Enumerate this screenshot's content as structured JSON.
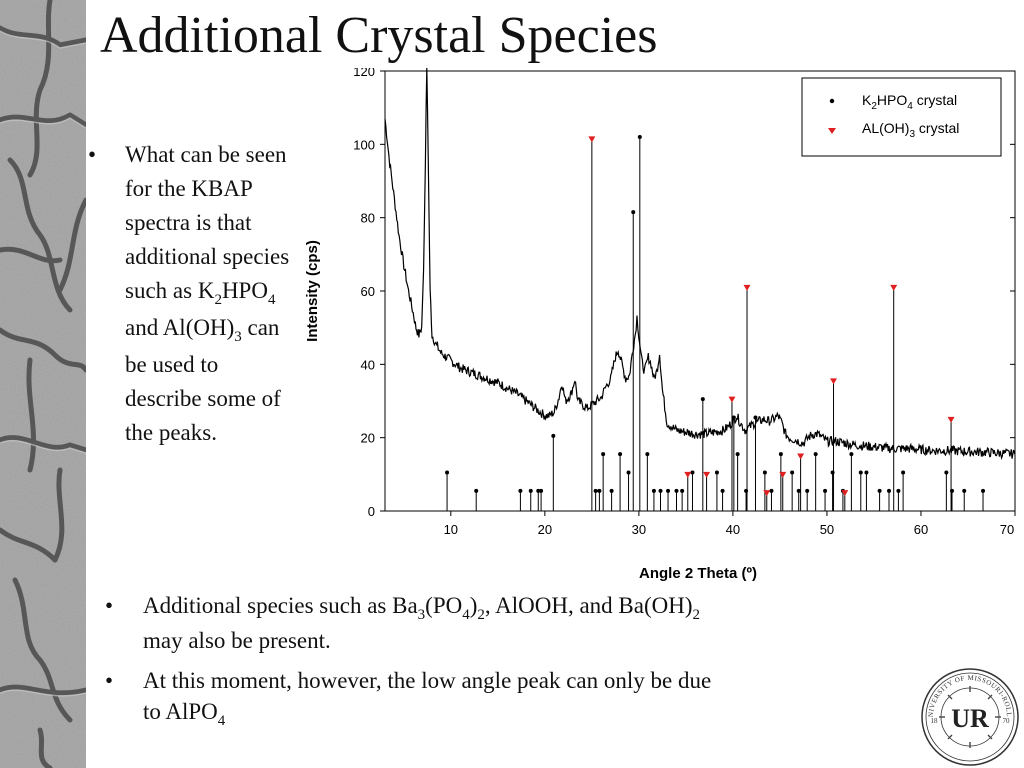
{
  "slide": {
    "title": "Additional Crystal Species",
    "bullet_marker": "•",
    "left_bullet": {
      "part1": "What can be seen for the KBAP spectra is that additional species such as K",
      "sub1": "2",
      "part2": "HPO",
      "sub2": "4",
      "part3": " and Al(OH)",
      "sub3": "3",
      "part4": " can be used to describe some of the peaks."
    },
    "bottom_bullets": [
      {
        "part1": "Additional species such as Ba",
        "sub1": "3",
        "part2": "(PO",
        "sub2": "4",
        "part3": ")",
        "sub3": "2",
        "part4": ", AlOOH, and Ba(OH)",
        "sub4": "2",
        "part5": " may also be present."
      },
      {
        "part1": "At this moment, however, the low angle peak can only be due to AlPO",
        "sub1": "4"
      }
    ],
    "logo_text": {
      "top": "UNIVERSITY OF MISSOURI-ROLLA",
      "monogram": "UR",
      "year_left": "18",
      "year_right": "70"
    }
  },
  "chart_data": {
    "type": "line",
    "xlabel": "Angle 2 Theta (º)",
    "ylabel": "Intensity (cps)",
    "xlim": [
      3,
      70
    ],
    "ylim": [
      0,
      120
    ],
    "x_ticks": [
      10,
      20,
      30,
      40,
      50,
      60,
      70
    ],
    "y_ticks": [
      0,
      20,
      40,
      60,
      80,
      100,
      120
    ],
    "x_tick_labels": [
      "10",
      "20",
      "30",
      "40",
      "50",
      "60",
      "70"
    ],
    "y_tick_labels": [
      "0",
      "20",
      "40",
      "60",
      "80",
      "100",
      "120"
    ],
    "grid": false,
    "legend_position": "top-right",
    "legend": [
      {
        "label_main": "K",
        "sub1": "2",
        "label_mid": "HPO",
        "sub2": "4",
        "label_end": " crystal",
        "marker": "circle",
        "color": "#000000"
      },
      {
        "label_main": "AL(OH)",
        "sub1": "3",
        "label_mid": "",
        "sub2": "",
        "label_end": " crystal",
        "marker": "triangle-down",
        "color": "#e02020"
      }
    ],
    "series": [
      {
        "name": "KBAP spectrum",
        "color": "#000000",
        "points": [
          [
            3,
            107
          ],
          [
            3.5,
            95
          ],
          [
            4,
            85
          ],
          [
            4.5,
            75
          ],
          [
            5,
            67
          ],
          [
            5.5,
            60
          ],
          [
            6,
            54
          ],
          [
            6.3,
            50
          ],
          [
            6.6,
            48
          ],
          [
            6.9,
            50
          ],
          [
            7.1,
            66
          ],
          [
            7.3,
            95
          ],
          [
            7.45,
            125
          ],
          [
            7.6,
            95
          ],
          [
            7.8,
            60
          ],
          [
            8,
            48
          ],
          [
            8.5,
            45
          ],
          [
            9,
            43
          ],
          [
            10,
            41
          ],
          [
            11,
            39
          ],
          [
            12,
            38
          ],
          [
            13,
            37
          ],
          [
            14,
            36
          ],
          [
            15,
            35
          ],
          [
            16,
            33.5
          ],
          [
            17,
            32
          ],
          [
            18,
            30
          ],
          [
            19,
            28
          ],
          [
            19.5,
            27
          ],
          [
            20,
            26
          ],
          [
            20.5,
            26
          ],
          [
            21,
            27
          ],
          [
            21.5,
            31
          ],
          [
            21.8,
            35
          ],
          [
            22.2,
            30
          ],
          [
            22.8,
            32
          ],
          [
            23.2,
            36
          ],
          [
            23.5,
            30
          ],
          [
            24,
            29
          ],
          [
            24.5,
            28
          ],
          [
            25,
            29
          ],
          [
            25.5,
            30
          ],
          [
            26,
            31
          ],
          [
            26.5,
            34
          ],
          [
            27,
            36
          ],
          [
            27.5,
            42
          ],
          [
            27.8,
            44
          ],
          [
            28.2,
            40
          ],
          [
            28.6,
            36
          ],
          [
            29,
            37
          ],
          [
            29.3,
            43
          ],
          [
            29.6,
            48
          ],
          [
            29.8,
            53
          ],
          [
            30,
            48
          ],
          [
            30.3,
            41
          ],
          [
            30.6,
            38
          ],
          [
            31,
            42
          ],
          [
            31.3,
            40
          ],
          [
            31.6,
            36
          ],
          [
            31.9,
            38
          ],
          [
            32.2,
            43
          ],
          [
            32.5,
            33
          ],
          [
            33,
            24
          ],
          [
            33.5,
            23
          ],
          [
            34,
            22
          ],
          [
            35,
            21.5
          ],
          [
            36,
            21
          ],
          [
            37,
            21
          ],
          [
            38,
            21.5
          ],
          [
            39,
            22
          ],
          [
            39.5,
            23
          ],
          [
            40,
            24.5
          ],
          [
            40.4,
            26
          ],
          [
            40.8,
            24
          ],
          [
            41.3,
            22
          ],
          [
            41.8,
            23
          ],
          [
            42.3,
            24
          ],
          [
            42.8,
            24.5
          ],
          [
            43.3,
            25
          ],
          [
            43.8,
            24.5
          ],
          [
            44.3,
            25
          ],
          [
            44.8,
            26
          ],
          [
            45.2,
            24
          ],
          [
            45.6,
            21
          ],
          [
            46,
            20
          ],
          [
            46.5,
            19.5
          ],
          [
            47,
            19
          ],
          [
            47.5,
            18.5
          ],
          [
            48,
            20
          ],
          [
            48.5,
            21
          ],
          [
            49,
            21
          ],
          [
            49.5,
            20
          ],
          [
            50,
            19
          ],
          [
            51,
            19
          ],
          [
            52,
            18.5
          ],
          [
            53,
            18
          ],
          [
            55,
            17.5
          ],
          [
            57,
            17
          ],
          [
            59,
            17
          ],
          [
            61,
            16.5
          ],
          [
            63,
            16.5
          ],
          [
            65,
            16.2
          ],
          [
            67,
            16
          ],
          [
            70,
            15.5
          ]
        ]
      }
    ],
    "k2hpo4_peaks": [
      [
        9.6,
        10.5
      ],
      [
        12.7,
        5.5
      ],
      [
        17.4,
        5.5
      ],
      [
        18.5,
        5.5
      ],
      [
        19.3,
        5.5
      ],
      [
        19.6,
        5.5
      ],
      [
        20.9,
        20.5
      ],
      [
        25.4,
        5.5
      ],
      [
        25.8,
        5.5
      ],
      [
        26.2,
        15.5
      ],
      [
        27.1,
        5.5
      ],
      [
        28,
        15.5
      ],
      [
        28.9,
        10.5
      ],
      [
        29.4,
        81.5
      ],
      [
        30.1,
        102
      ],
      [
        30.9,
        15.5
      ],
      [
        31.6,
        5.5
      ],
      [
        32.3,
        5.5
      ],
      [
        33.1,
        5.5
      ],
      [
        34,
        5.5
      ],
      [
        34.6,
        5.5
      ],
      [
        35.7,
        10.5
      ],
      [
        36.8,
        30.5
      ],
      [
        38.3,
        10.5
      ],
      [
        38.9,
        5.5
      ],
      [
        40.1,
        25.5
      ],
      [
        40.5,
        15.5
      ],
      [
        41.4,
        5.5
      ],
      [
        42.4,
        25.5
      ],
      [
        43.4,
        10.5
      ],
      [
        44.1,
        5.5
      ],
      [
        45.1,
        15.5
      ],
      [
        46.3,
        10.5
      ],
      [
        47,
        5.5
      ],
      [
        47.9,
        5.5
      ],
      [
        48.8,
        15.5
      ],
      [
        49.8,
        5.5
      ],
      [
        50.6,
        10.5
      ],
      [
        51.7,
        5.5
      ],
      [
        52.6,
        15.5
      ],
      [
        53.6,
        10.5
      ],
      [
        54.2,
        10.5
      ],
      [
        55.6,
        5.5
      ],
      [
        56.6,
        5.5
      ],
      [
        57.6,
        5.5
      ],
      [
        58.1,
        10.5
      ],
      [
        62.7,
        10.5
      ],
      [
        63.3,
        5.5
      ],
      [
        64.6,
        5.5
      ],
      [
        66.6,
        5.5
      ]
    ],
    "aloh3_peaks": [
      [
        25,
        101.5
      ],
      [
        35.2,
        10
      ],
      [
        37.2,
        10
      ],
      [
        39.9,
        30.5
      ],
      [
        41.5,
        61
      ],
      [
        43.6,
        5
      ],
      [
        45.3,
        10
      ],
      [
        47.2,
        15
      ],
      [
        50.7,
        35.5
      ],
      [
        51.9,
        5
      ],
      [
        57.1,
        61
      ],
      [
        63.2,
        25
      ]
    ]
  }
}
